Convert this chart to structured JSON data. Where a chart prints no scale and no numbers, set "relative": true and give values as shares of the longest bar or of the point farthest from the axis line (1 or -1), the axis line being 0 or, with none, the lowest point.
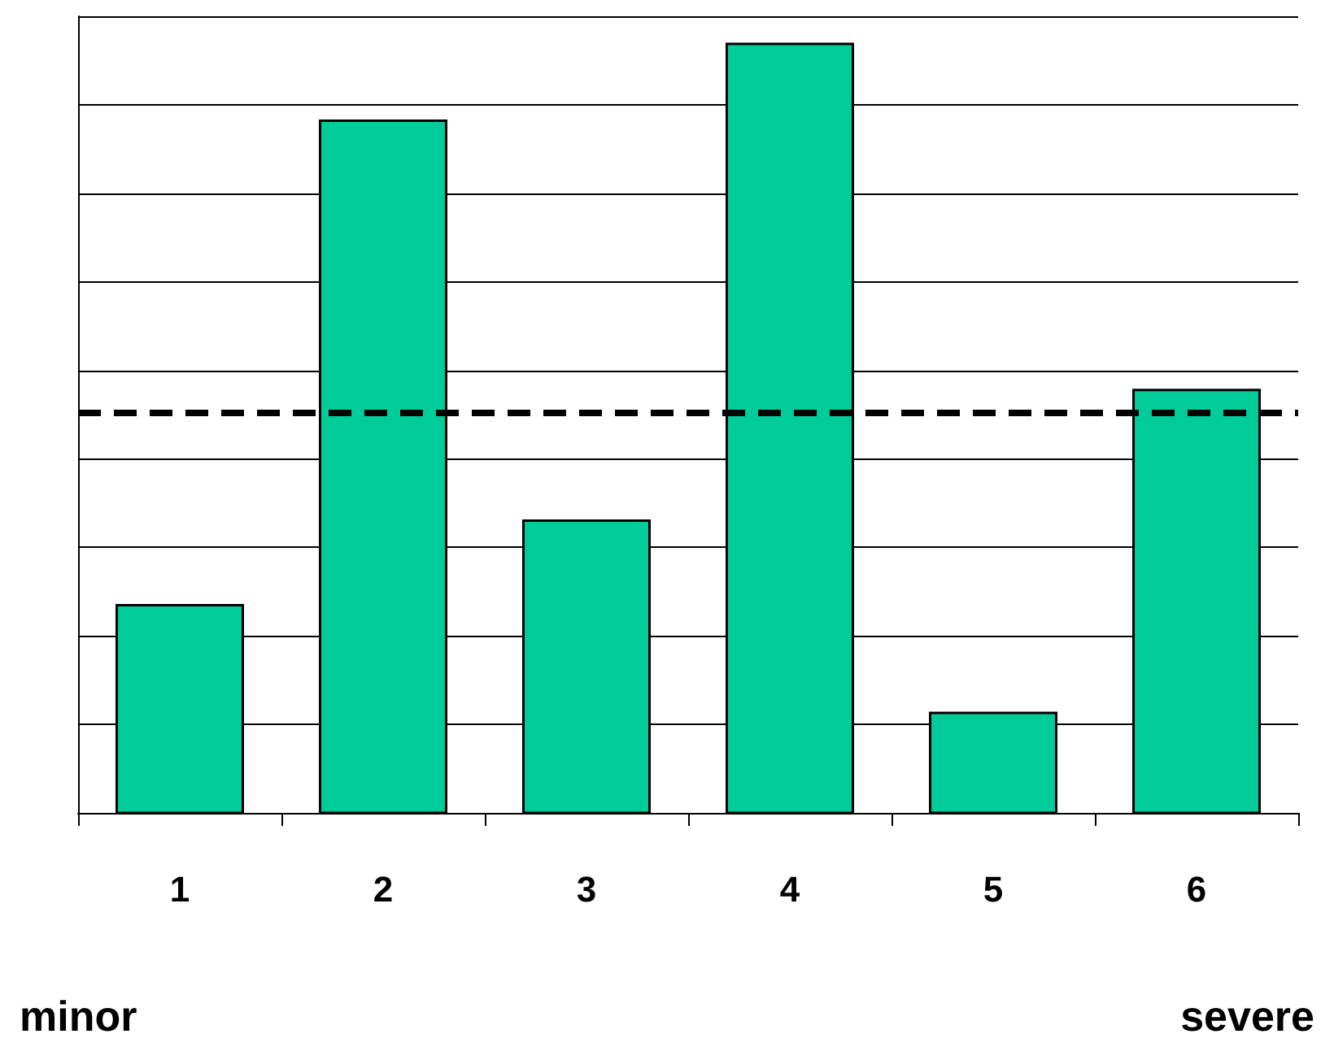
{
  "chart_data": {
    "type": "bar",
    "relative": true,
    "categories": [
      "1",
      "2",
      "3",
      "4",
      "5",
      "6"
    ],
    "values": [
      0.27,
      0.9,
      0.38,
      1,
      0.13,
      0.55
    ],
    "color": "#00cc99",
    "grid": "y",
    "ref_lines": [
      {
        "axis": "y",
        "value": 0.52,
        "color": "#000000",
        "line_style": "dashed"
      }
    ],
    "annotations": [
      "minor",
      "severe"
    ]
  }
}
